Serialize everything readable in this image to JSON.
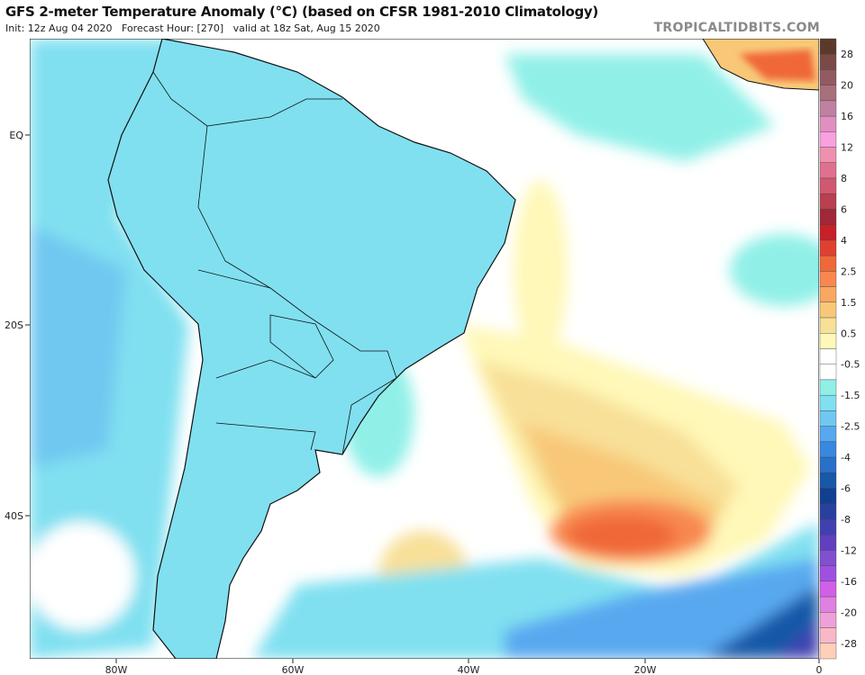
{
  "header": {
    "title": "GFS 2-meter Temperature Anomaly (°C) (based on CFSR 1981-2010 Climatology)",
    "subtitle": "Init: 12z Aug 04 2020   Forecast Hour: [270]   valid at 18z Sat, Aug 15 2020",
    "brand": "TROPICALTIDBITS.COM"
  },
  "map": {
    "region": "South America / South Atlantic",
    "lon_labels": [
      "80W",
      "60W",
      "40W",
      "20W",
      "0"
    ],
    "lat_labels": [
      "EQ",
      "20S",
      "40S"
    ],
    "colors": {
      "ocean_base": "#ffffff",
      "warm": "#e04030",
      "cool": "#2870c8",
      "border": "#111111"
    }
  },
  "colorbar": {
    "labels": [
      "28",
      "20",
      "16",
      "12",
      "8",
      "6",
      "4",
      "2.5",
      "1.5",
      "0.5",
      "-0.5",
      "-1.5",
      "-2.5",
      "-4",
      "-6",
      "-8",
      "-12",
      "-16",
      "-20",
      "-28"
    ],
    "colors": [
      "#5a3a2a",
      "#7a4a48",
      "#935a62",
      "#a8707a",
      "#c080a0",
      "#e090c0",
      "#f8a0e0",
      "#f090b0",
      "#e07090",
      "#d05870",
      "#b84050",
      "#a02838",
      "#c82028",
      "#e04030",
      "#f06838",
      "#f88850",
      "#f8a860",
      "#f8c878",
      "#f8e098",
      "#fff8b8",
      "#ffffff",
      "#ffffff",
      "#90f0e8",
      "#80e0f0",
      "#70c8f0",
      "#58a8f0",
      "#3888e0",
      "#2870c8",
      "#1858a8",
      "#104090",
      "#2840a0",
      "#4040b0",
      "#6040c0",
      "#8050d0",
      "#a050e0",
      "#d060e8",
      "#e080e0",
      "#f0a0d8",
      "#f8b8c8",
      "#ffd0b8"
    ]
  }
}
